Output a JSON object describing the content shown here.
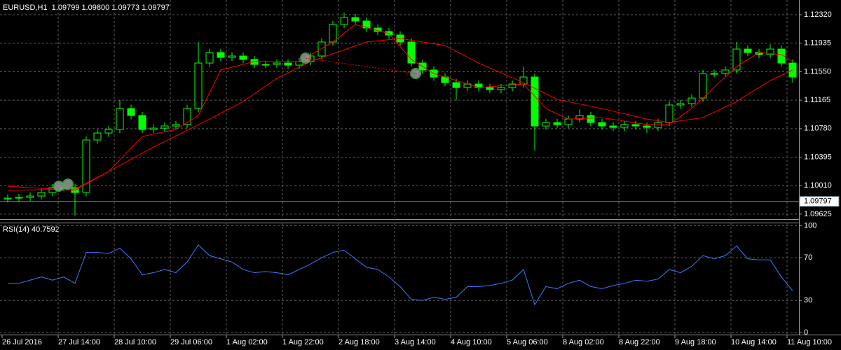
{
  "chart_data": [
    {
      "type": "candlestick",
      "title": "EURUSD,H1  1.09799 1.09800 1.09773 1.09797",
      "categories": [
        "26 Jul 2016",
        null,
        null,
        null,
        null,
        "27 Jul 14:00",
        null,
        null,
        null,
        null,
        "28 Jul 10:00",
        null,
        null,
        null,
        null,
        "29 Jul 06:00",
        null,
        null,
        null,
        null,
        "1 Aug 02:00",
        null,
        null,
        null,
        null,
        "1 Aug 22:00",
        null,
        null,
        null,
        null,
        "2 Aug 18:00",
        null,
        null,
        null,
        null,
        "3 Aug 14:00",
        null,
        null,
        null,
        null,
        "4 Aug 10:00",
        null,
        null,
        null,
        null,
        "5 Aug 06:00",
        null,
        null,
        null,
        null,
        "8 Aug 02:00",
        null,
        null,
        null,
        null,
        "8 Aug 22:00",
        null,
        null,
        null,
        null,
        "9 Aug 18:00",
        null,
        null,
        null,
        null,
        "10 Aug 14:00",
        null,
        null,
        null,
        null,
        "11 Aug 10:00"
      ],
      "open": [
        1.0983,
        1.09841,
        1.09851,
        1.0987,
        1.09917,
        1.09983,
        1.09983,
        1.09917,
        1.10627,
        1.10721,
        1.10769,
        1.11052,
        1.10958,
        1.10769,
        1.10787,
        1.10816,
        1.10835,
        1.11052,
        1.11667,
        1.11809,
        1.11743,
        1.11762,
        1.11715,
        1.11648,
        1.11648,
        1.11667,
        1.11639,
        1.11686,
        1.11762,
        1.11951,
        1.12188,
        1.12282,
        1.12235,
        1.1214,
        1.12093,
        1.12046,
        1.11951,
        1.11667,
        1.11573,
        1.11478,
        1.11402,
        1.11336,
        1.11383,
        1.11336,
        1.11308,
        1.11336,
        1.11383,
        1.11478,
        1.10816,
        1.10863,
        1.10835,
        1.1091,
        1.10958,
        1.10863,
        1.10816,
        1.10797,
        1.10835,
        1.10816,
        1.10797,
        1.10863,
        1.111,
        1.11119,
        1.11194,
        1.11525,
        1.11525,
        1.11573,
        1.11856,
        1.11809,
        1.11781,
        1.11856,
        1.11667
      ],
      "high": [
        1.09891,
        1.09901,
        1.0992,
        1.09967,
        1.10033,
        1.10033,
        1.10033,
        1.10677,
        1.10771,
        1.10819,
        1.11166,
        1.11102,
        1.11008,
        1.10837,
        1.10866,
        1.10885,
        1.11102,
        1.11951,
        1.11859,
        1.11859,
        1.11812,
        1.11812,
        1.11765,
        1.11698,
        1.11717,
        1.11717,
        1.11736,
        1.11812,
        1.12001,
        1.12238,
        1.12348,
        1.12332,
        1.12285,
        1.1219,
        1.12143,
        1.12096,
        1.12001,
        1.11717,
        1.11623,
        1.11528,
        1.11452,
        1.11433,
        1.11433,
        1.11386,
        1.11386,
        1.11433,
        1.1162,
        1.11528,
        1.10913,
        1.10913,
        1.1096,
        1.1104,
        1.11008,
        1.10913,
        1.10866,
        1.10885,
        1.10885,
        1.10866,
        1.10913,
        1.1115,
        1.11169,
        1.11244,
        1.11575,
        1.11575,
        1.11623,
        1.11951,
        1.11906,
        1.11859,
        1.1192,
        1.11906,
        1.11717
      ],
      "low": [
        1.0978,
        1.09791,
        1.09801,
        1.0982,
        1.09867,
        1.09933,
        1.09605,
        1.09867,
        1.10577,
        1.10671,
        1.10719,
        1.10908,
        1.10719,
        1.10719,
        1.10737,
        1.10766,
        1.10785,
        1.11002,
        1.11617,
        1.11693,
        1.11693,
        1.11665,
        1.11598,
        1.11598,
        1.11598,
        1.11589,
        1.11589,
        1.11636,
        1.11712,
        1.11901,
        1.12138,
        1.12185,
        1.1209,
        1.12043,
        1.11996,
        1.11901,
        1.11617,
        1.11523,
        1.11428,
        1.11352,
        1.1116,
        1.11286,
        1.11286,
        1.11258,
        1.11258,
        1.11286,
        1.11333,
        1.10485,
        1.10766,
        1.10785,
        1.10785,
        1.1086,
        1.10813,
        1.10766,
        1.10747,
        1.10747,
        1.10766,
        1.1072,
        1.10747,
        1.10813,
        1.1105,
        1.11069,
        1.11144,
        1.11475,
        1.11475,
        1.11523,
        1.11759,
        1.11731,
        1.11731,
        1.11617,
        1.114
      ],
      "close": [
        1.09841,
        1.09851,
        1.0987,
        1.09917,
        1.09983,
        1.09983,
        1.09917,
        1.10627,
        1.10721,
        1.10769,
        1.11052,
        1.10958,
        1.10769,
        1.10787,
        1.10816,
        1.10835,
        1.11052,
        1.11667,
        1.11809,
        1.11743,
        1.11762,
        1.11715,
        1.11648,
        1.11648,
        1.11667,
        1.11639,
        1.11686,
        1.11762,
        1.11951,
        1.12188,
        1.12282,
        1.12235,
        1.1214,
        1.12093,
        1.12046,
        1.11951,
        1.11667,
        1.11573,
        1.11478,
        1.11402,
        1.11336,
        1.11383,
        1.11336,
        1.11308,
        1.11336,
        1.11383,
        1.11478,
        1.10816,
        1.10863,
        1.10835,
        1.1091,
        1.10958,
        1.10863,
        1.10816,
        1.10797,
        1.10835,
        1.10816,
        1.10797,
        1.10863,
        1.111,
        1.11119,
        1.11194,
        1.11525,
        1.11525,
        1.11573,
        1.11856,
        1.11809,
        1.11781,
        1.11856,
        1.11667,
        1.11478
      ],
      "color": "#00ff00",
      "overlays": [
        {
          "color": "#ff0000",
          "x": [
            0,
            6,
            9,
            12,
            15,
            17,
            19,
            22,
            26,
            29,
            31,
            34,
            36,
            38,
            42,
            46,
            48,
            50,
            53,
            57,
            59,
            61,
            63,
            65,
            67,
            69,
            70
          ],
          "values": [
            1.10002,
            1.09946,
            1.10201,
            1.10674,
            1.10769,
            1.10958,
            1.11573,
            1.11686,
            1.11686,
            1.11951,
            1.12188,
            1.12065,
            1.11715,
            1.11525,
            1.11336,
            1.11383,
            1.11052,
            1.1091,
            1.10929,
            1.10835,
            1.10835,
            1.11052,
            1.11336,
            1.1162,
            1.11809,
            1.11781,
            1.11686
          ]
        },
        {
          "color": "#ff0000",
          "x": [
            0,
            6,
            9,
            13,
            18,
            21,
            24,
            27,
            32,
            35,
            39,
            42,
            46,
            49,
            53,
            57,
            59,
            62,
            65,
            68,
            70
          ],
          "values": [
            1.09946,
            1.09965,
            1.10201,
            1.10532,
            1.1091,
            1.11147,
            1.11459,
            1.11686,
            1.11951,
            1.11998,
            1.11904,
            1.11667,
            1.11402,
            1.11175,
            1.11052,
            1.1091,
            1.10863,
            1.10929,
            1.11147,
            1.11431,
            1.11573
          ]
        }
      ],
      "current_price": 1.09797,
      "ylim": [
        1.09558,
        1.12481
      ],
      "yticks": [
        {
          "value": 1.1232,
          "label": "1.12320"
        },
        {
          "value": 1.11935,
          "label": "1.11935"
        },
        {
          "value": 1.1155,
          "label": "1.11550"
        },
        {
          "value": 1.11165,
          "label": "1.11165"
        },
        {
          "value": 1.1078,
          "label": "1.10780"
        },
        {
          "value": 1.10395,
          "label": "1.10395"
        },
        {
          "value": 1.1001,
          "label": "1.10010"
        },
        {
          "value": 1.09625,
          "label": "1.09625"
        }
      ],
      "grid": true
    },
    {
      "type": "line",
      "title": "RSI(14) 40.7592",
      "color": "#3b7bff",
      "values": [
        46,
        46,
        49,
        52,
        49,
        52,
        46,
        75,
        75,
        74,
        79,
        69,
        54,
        56,
        59,
        56,
        66,
        82,
        72,
        69,
        66,
        59,
        56,
        57,
        56,
        54,
        59,
        64,
        70,
        75,
        77,
        69,
        61,
        59,
        52,
        43,
        31,
        30,
        33,
        31,
        33,
        43,
        43,
        44,
        46,
        49,
        59,
        26,
        43,
        41,
        46,
        49,
        43,
        41,
        44,
        46,
        49,
        48,
        50,
        59,
        56,
        62,
        72,
        69,
        72,
        81,
        69,
        68,
        68,
        52,
        39
      ],
      "ylim": [
        -2,
        101.6
      ],
      "yticks": [
        100,
        70,
        30,
        0
      ],
      "grid": true
    }
  ]
}
